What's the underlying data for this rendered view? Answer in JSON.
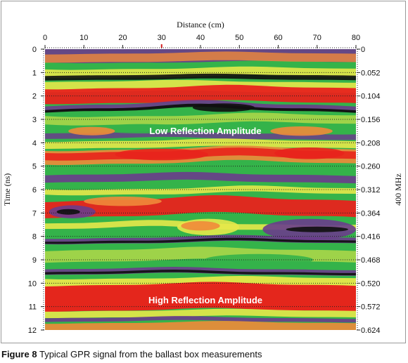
{
  "figure": {
    "caption_label": "Figure 8",
    "caption_text": "Typical GPR signal from the ballast box measurements"
  },
  "axes": {
    "top_title": "Distance (cm)",
    "left_title": "Time (ns)",
    "right_title": "400 MHz",
    "x_ticks": [
      "0",
      "10",
      "20",
      "30",
      "40",
      "50",
      "60",
      "70",
      "80"
    ],
    "y_ticks": [
      "0",
      "1",
      "2",
      "3",
      "4",
      "5",
      "6",
      "7",
      "8",
      "9",
      "10",
      "11",
      "12"
    ],
    "right_ticks": [
      "0",
      "0.052",
      "0.104",
      "0.156",
      "0.208",
      "0.260",
      "0.312",
      "0.364",
      "0.416",
      "0.468",
      "0.520",
      "0.572",
      "0.624"
    ]
  },
  "annotations": {
    "low": "Low Reflection Amplitude",
    "high": "High Reflection Amplitude"
  },
  "colors": {
    "red": "#e8231c",
    "orange": "#f08a3a",
    "yellow": "#e6e84a",
    "green": "#34b34a",
    "purple": "#6a3c8c",
    "black": "#101010"
  }
}
